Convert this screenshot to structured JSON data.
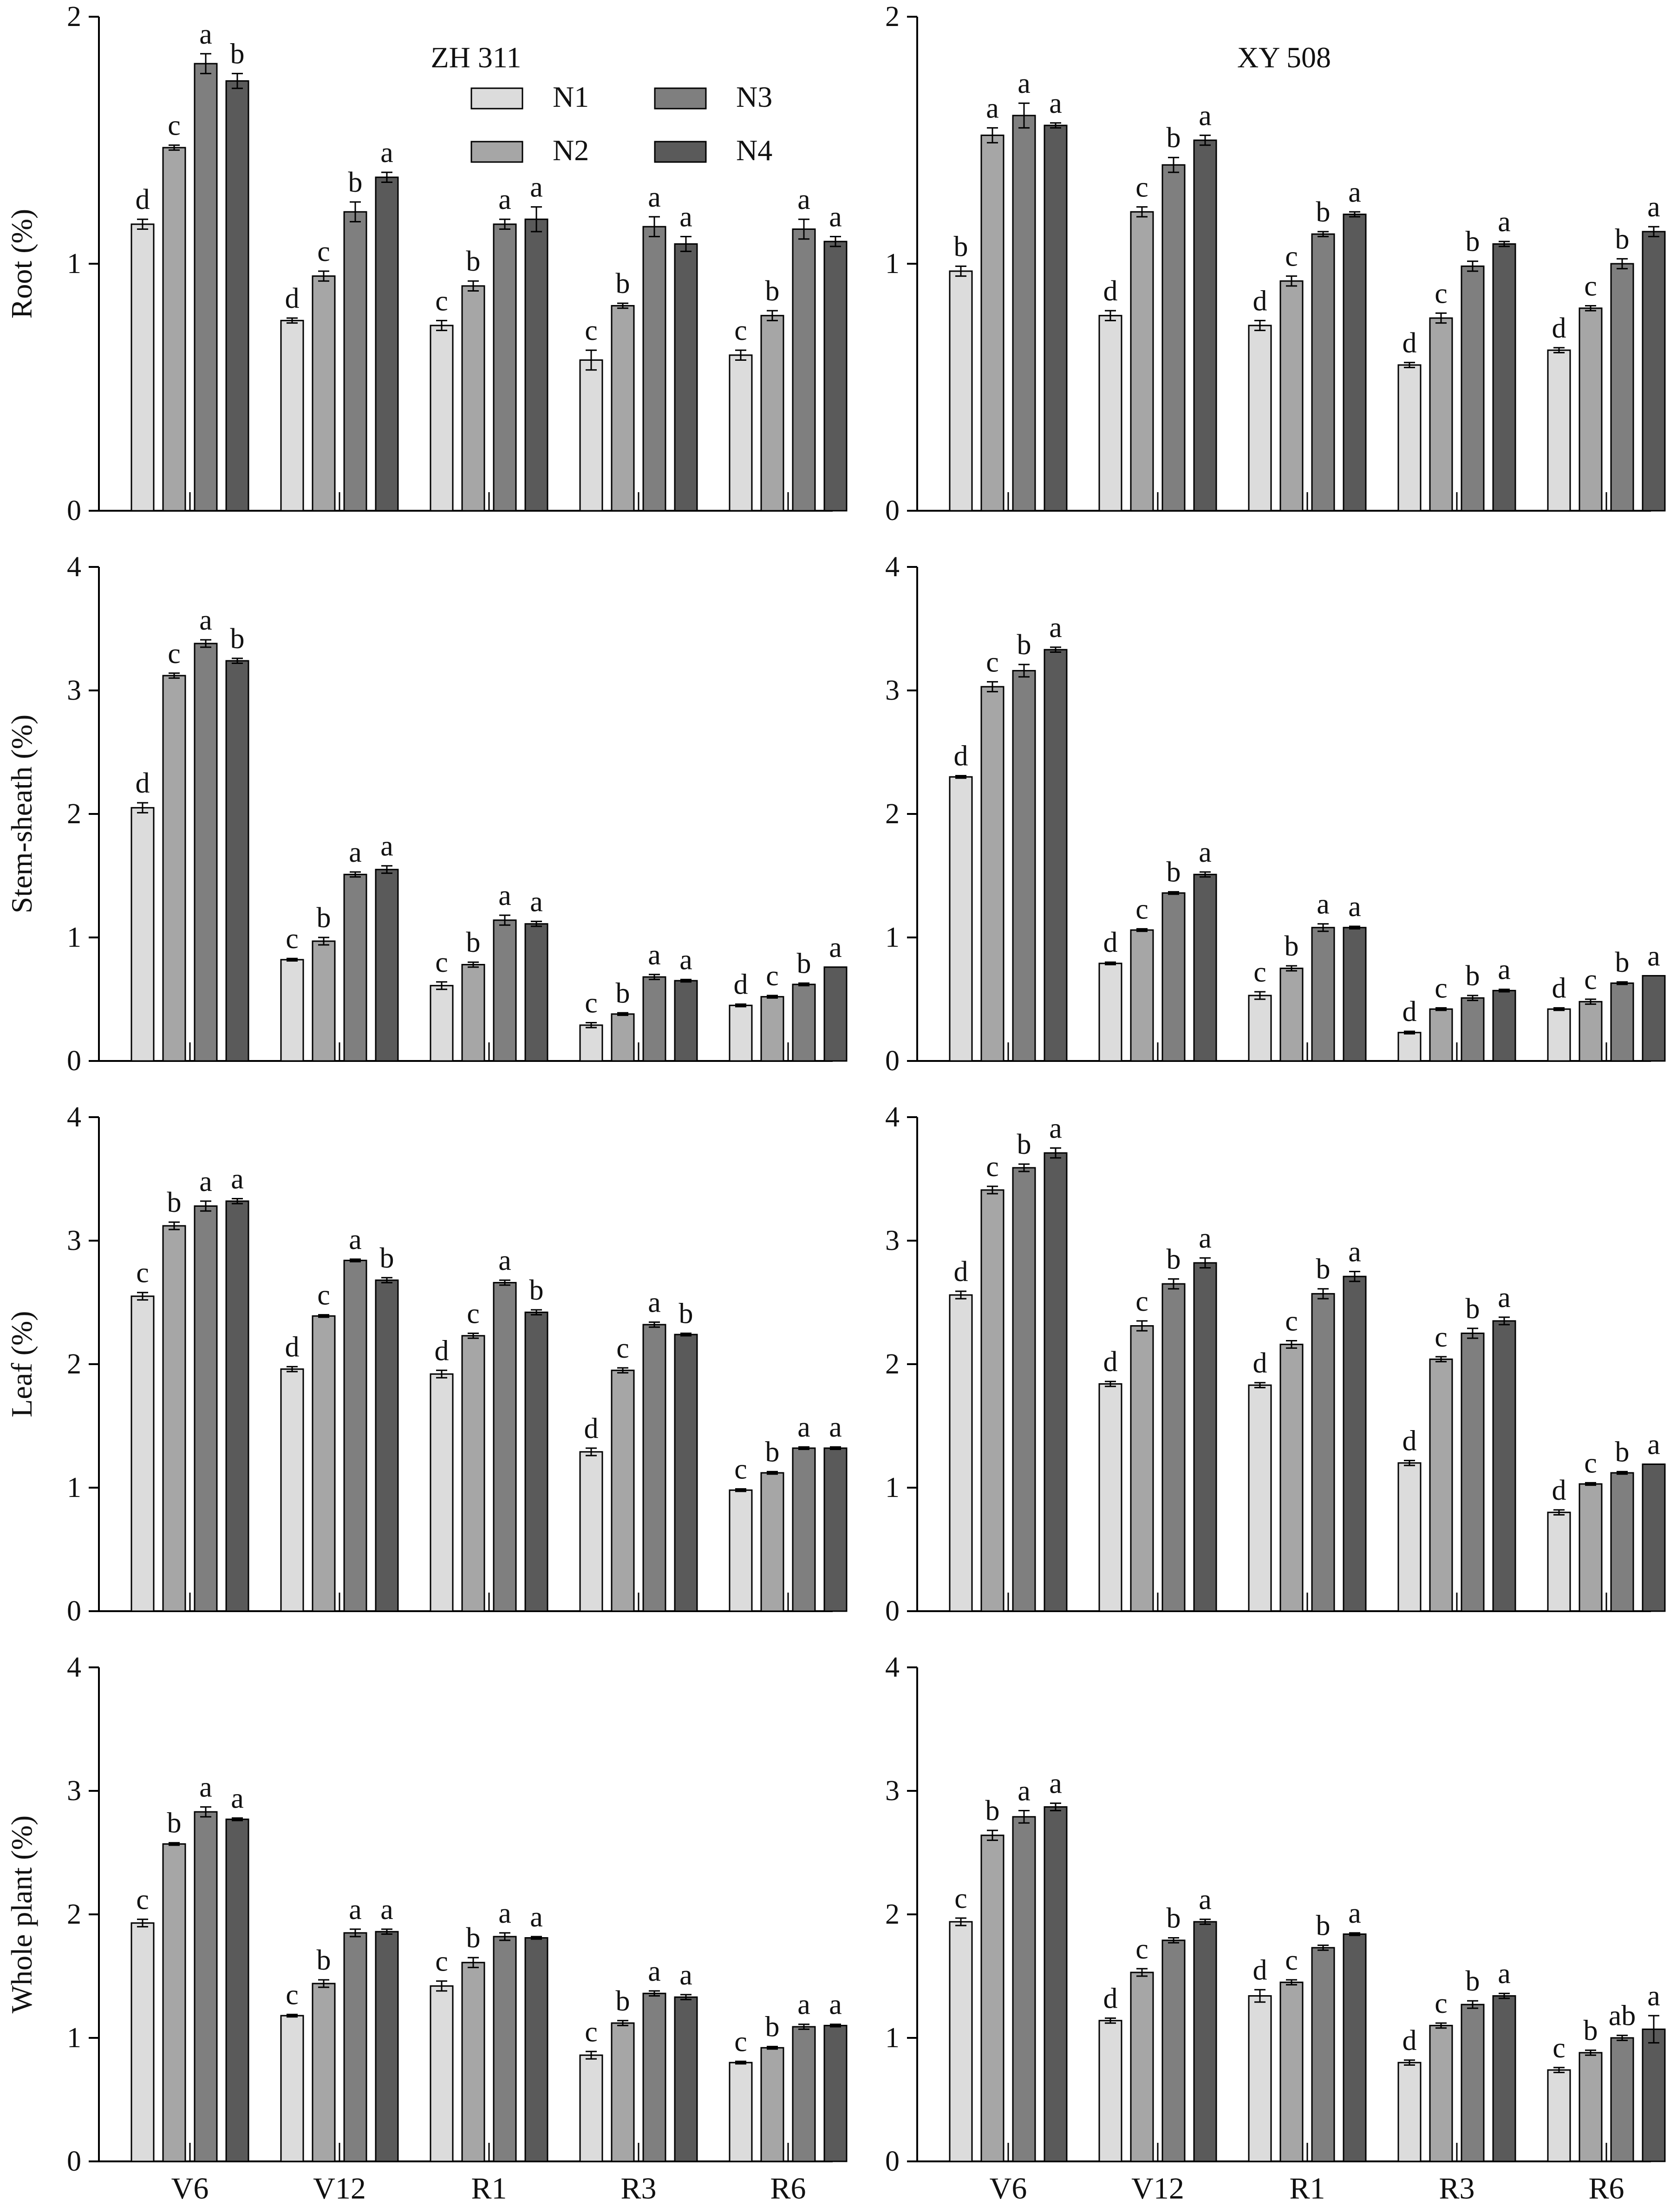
{
  "figure": {
    "varieties": [
      "ZH 311",
      "XY 508"
    ],
    "stages": [
      "V6",
      "V12",
      "R1",
      "R3",
      "R6"
    ],
    "legend": [
      {
        "name": "N1",
        "color": "#dcdcdc"
      },
      {
        "name": "N2",
        "color": "#a6a6a6"
      },
      {
        "name": "N3",
        "color": "#7f7f7f"
      },
      {
        "name": "N4",
        "color": "#5a5a5a"
      }
    ]
  },
  "chart_data": [
    {
      "type": "bar",
      "organ": "Root",
      "variety": "ZH 311",
      "title": "ZH 311",
      "ylabel": "Root (%)",
      "ylim": [
        0,
        2
      ],
      "yticks": [
        0,
        1,
        2
      ],
      "categories": [
        "V6",
        "V12",
        "R1",
        "R3",
        "R6"
      ],
      "show_legend": true,
      "show_xlabels": false,
      "series": [
        {
          "name": "N1",
          "values": [
            1.16,
            0.77,
            0.75,
            0.61,
            0.63
          ],
          "errors": [
            0.02,
            0.01,
            0.02,
            0.04,
            0.02
          ],
          "letters": [
            "d",
            "d",
            "c",
            "c",
            "c"
          ]
        },
        {
          "name": "N2",
          "values": [
            1.47,
            0.95,
            0.91,
            0.83,
            0.79
          ],
          "errors": [
            0.01,
            0.02,
            0.02,
            0.01,
            0.02
          ],
          "letters": [
            "c",
            "c",
            "b",
            "b",
            "b"
          ]
        },
        {
          "name": "N3",
          "values": [
            1.81,
            1.21,
            1.16,
            1.15,
            1.14
          ],
          "errors": [
            0.04,
            0.04,
            0.02,
            0.04,
            0.04
          ],
          "letters": [
            "a",
            "b",
            "a",
            "a",
            "a"
          ]
        },
        {
          "name": "N4",
          "values": [
            1.74,
            1.35,
            1.18,
            1.08,
            1.09
          ],
          "errors": [
            0.03,
            0.02,
            0.05,
            0.03,
            0.02
          ],
          "letters": [
            "b",
            "a",
            "a",
            "a",
            "a"
          ]
        }
      ]
    },
    {
      "type": "bar",
      "organ": "Root",
      "variety": "XY 508",
      "title": "XY 508",
      "ylabel": "",
      "ylim": [
        0,
        2
      ],
      "yticks": [
        0,
        1,
        2
      ],
      "categories": [
        "V6",
        "V12",
        "R1",
        "R3",
        "R6"
      ],
      "show_legend": false,
      "show_xlabels": false,
      "series": [
        {
          "name": "N1",
          "values": [
            0.97,
            0.79,
            0.75,
            0.59,
            0.65
          ],
          "errors": [
            0.02,
            0.02,
            0.02,
            0.01,
            0.01
          ],
          "letters": [
            "b",
            "d",
            "d",
            "d",
            "d"
          ]
        },
        {
          "name": "N2",
          "values": [
            1.52,
            1.21,
            0.93,
            0.78,
            0.82
          ],
          "errors": [
            0.03,
            0.02,
            0.02,
            0.02,
            0.01
          ],
          "letters": [
            "a",
            "c",
            "c",
            "c",
            "c"
          ]
        },
        {
          "name": "N3",
          "values": [
            1.6,
            1.4,
            1.12,
            0.99,
            1.0
          ],
          "errors": [
            0.05,
            0.03,
            0.01,
            0.02,
            0.02
          ],
          "letters": [
            "a",
            "b",
            "b",
            "b",
            "b"
          ]
        },
        {
          "name": "N4",
          "values": [
            1.56,
            1.5,
            1.2,
            1.08,
            1.13
          ],
          "errors": [
            0.01,
            0.02,
            0.01,
            0.01,
            0.02
          ],
          "letters": [
            "a",
            "a",
            "a",
            "a",
            "a"
          ]
        }
      ]
    },
    {
      "type": "bar",
      "organ": "Stem-sheath",
      "variety": "ZH 311",
      "title": "",
      "ylabel": "Stem-sheath (%)",
      "ylim": [
        0,
        4
      ],
      "yticks": [
        0,
        1,
        2,
        3,
        4
      ],
      "categories": [
        "V6",
        "V12",
        "R1",
        "R3",
        "R6"
      ],
      "show_legend": false,
      "show_xlabels": false,
      "series": [
        {
          "name": "N1",
          "values": [
            2.05,
            0.82,
            0.61,
            0.29,
            0.45
          ],
          "errors": [
            0.04,
            0.01,
            0.03,
            0.02,
            0.01
          ],
          "letters": [
            "d",
            "c",
            "c",
            "c",
            "d"
          ]
        },
        {
          "name": "N2",
          "values": [
            3.12,
            0.97,
            0.78,
            0.38,
            0.52
          ],
          "errors": [
            0.02,
            0.03,
            0.02,
            0.01,
            0.01
          ],
          "letters": [
            "c",
            "b",
            "b",
            "b",
            "c"
          ]
        },
        {
          "name": "N3",
          "values": [
            3.38,
            1.51,
            1.14,
            0.68,
            0.62
          ],
          "errors": [
            0.03,
            0.02,
            0.04,
            0.02,
            0.01
          ],
          "letters": [
            "a",
            "a",
            "a",
            "a",
            "b"
          ]
        },
        {
          "name": "N4",
          "values": [
            3.24,
            1.55,
            1.11,
            0.65,
            0.76
          ],
          "errors": [
            0.02,
            0.03,
            0.02,
            0.01,
            0.0
          ],
          "letters": [
            "b",
            "a",
            "a",
            "a",
            "a"
          ]
        }
      ]
    },
    {
      "type": "bar",
      "organ": "Stem-sheath",
      "variety": "XY 508",
      "title": "",
      "ylabel": "",
      "ylim": [
        0,
        4
      ],
      "yticks": [
        0,
        1,
        2,
        3,
        4
      ],
      "categories": [
        "V6",
        "V12",
        "R1",
        "R3",
        "R6"
      ],
      "show_legend": false,
      "show_xlabels": false,
      "series": [
        {
          "name": "N1",
          "values": [
            2.3,
            0.79,
            0.53,
            0.23,
            0.42
          ],
          "errors": [
            0.01,
            0.01,
            0.03,
            0.01,
            0.01
          ],
          "letters": [
            "d",
            "d",
            "c",
            "d",
            "d"
          ]
        },
        {
          "name": "N2",
          "values": [
            3.03,
            1.06,
            0.75,
            0.42,
            0.48
          ],
          "errors": [
            0.04,
            0.01,
            0.02,
            0.01,
            0.02
          ],
          "letters": [
            "c",
            "c",
            "b",
            "c",
            "c"
          ]
        },
        {
          "name": "N3",
          "values": [
            3.16,
            1.36,
            1.08,
            0.51,
            0.63
          ],
          "errors": [
            0.05,
            0.01,
            0.03,
            0.02,
            0.01
          ],
          "letters": [
            "b",
            "b",
            "a",
            "b",
            "b"
          ]
        },
        {
          "name": "N4",
          "values": [
            3.33,
            1.51,
            1.08,
            0.57,
            0.69
          ],
          "errors": [
            0.02,
            0.02,
            0.01,
            0.01,
            0.0
          ],
          "letters": [
            "a",
            "a",
            "a",
            "a",
            "a"
          ]
        }
      ]
    },
    {
      "type": "bar",
      "organ": "Leaf",
      "variety": "ZH 311",
      "title": "",
      "ylabel": "Leaf (%)",
      "ylim": [
        0,
        4
      ],
      "yticks": [
        0,
        1,
        2,
        3,
        4
      ],
      "categories": [
        "V6",
        "V12",
        "R1",
        "R3",
        "R6"
      ],
      "show_legend": false,
      "show_xlabels": false,
      "series": [
        {
          "name": "N1",
          "values": [
            2.55,
            1.96,
            1.92,
            1.29,
            0.98
          ],
          "errors": [
            0.03,
            0.02,
            0.03,
            0.03,
            0.01
          ],
          "letters": [
            "c",
            "d",
            "d",
            "d",
            "c"
          ]
        },
        {
          "name": "N2",
          "values": [
            3.12,
            2.39,
            2.23,
            1.95,
            1.12
          ],
          "errors": [
            0.03,
            0.01,
            0.02,
            0.02,
            0.01
          ],
          "letters": [
            "b",
            "c",
            "c",
            "c",
            "b"
          ]
        },
        {
          "name": "N3",
          "values": [
            3.28,
            2.84,
            2.66,
            2.32,
            1.32
          ],
          "errors": [
            0.04,
            0.01,
            0.02,
            0.02,
            0.01
          ],
          "letters": [
            "a",
            "a",
            "a",
            "a",
            "a"
          ]
        },
        {
          "name": "N4",
          "values": [
            3.32,
            2.68,
            2.42,
            2.24,
            1.32
          ],
          "errors": [
            0.02,
            0.02,
            0.02,
            0.01,
            0.01
          ],
          "letters": [
            "a",
            "b",
            "b",
            "b",
            "a"
          ]
        }
      ]
    },
    {
      "type": "bar",
      "organ": "Leaf",
      "variety": "XY 508",
      "title": "",
      "ylabel": "",
      "ylim": [
        0,
        4
      ],
      "yticks": [
        0,
        1,
        2,
        3,
        4
      ],
      "categories": [
        "V6",
        "V12",
        "R1",
        "R3",
        "R6"
      ],
      "show_legend": false,
      "show_xlabels": false,
      "series": [
        {
          "name": "N1",
          "values": [
            2.56,
            1.84,
            1.83,
            1.2,
            0.8
          ],
          "errors": [
            0.03,
            0.02,
            0.02,
            0.02,
            0.02
          ],
          "letters": [
            "d",
            "d",
            "d",
            "d",
            "d"
          ]
        },
        {
          "name": "N2",
          "values": [
            3.41,
            2.31,
            2.16,
            2.04,
            1.03
          ],
          "errors": [
            0.03,
            0.04,
            0.03,
            0.02,
            0.01
          ],
          "letters": [
            "c",
            "c",
            "c",
            "c",
            "c"
          ]
        },
        {
          "name": "N3",
          "values": [
            3.59,
            2.65,
            2.57,
            2.25,
            1.12
          ],
          "errors": [
            0.03,
            0.04,
            0.04,
            0.04,
            0.01
          ],
          "letters": [
            "b",
            "b",
            "b",
            "b",
            "b"
          ]
        },
        {
          "name": "N4",
          "values": [
            3.71,
            2.82,
            2.71,
            2.35,
            1.19
          ],
          "errors": [
            0.04,
            0.04,
            0.04,
            0.03,
            0.0
          ],
          "letters": [
            "a",
            "a",
            "a",
            "a",
            "a"
          ]
        }
      ]
    },
    {
      "type": "bar",
      "organ": "Whole plant",
      "variety": "ZH 311",
      "title": "",
      "ylabel": "Whole plant (%)",
      "ylim": [
        0,
        4
      ],
      "yticks": [
        0,
        1,
        2,
        3,
        4
      ],
      "categories": [
        "V6",
        "V12",
        "R1",
        "R3",
        "R6"
      ],
      "show_legend": false,
      "show_xlabels": true,
      "series": [
        {
          "name": "N1",
          "values": [
            1.93,
            1.18,
            1.42,
            0.86,
            0.8
          ],
          "errors": [
            0.03,
            0.01,
            0.04,
            0.03,
            0.01
          ],
          "letters": [
            "c",
            "c",
            "c",
            "c",
            "c"
          ]
        },
        {
          "name": "N2",
          "values": [
            2.57,
            1.44,
            1.61,
            1.12,
            0.92
          ],
          "errors": [
            0.01,
            0.03,
            0.04,
            0.02,
            0.01
          ],
          "letters": [
            "b",
            "b",
            "b",
            "b",
            "b"
          ]
        },
        {
          "name": "N3",
          "values": [
            2.83,
            1.85,
            1.82,
            1.36,
            1.09
          ],
          "errors": [
            0.04,
            0.03,
            0.03,
            0.02,
            0.02
          ],
          "letters": [
            "a",
            "a",
            "a",
            "a",
            "a"
          ]
        },
        {
          "name": "N4",
          "values": [
            2.77,
            1.86,
            1.81,
            1.33,
            1.1
          ],
          "errors": [
            0.01,
            0.02,
            0.01,
            0.02,
            0.01
          ],
          "letters": [
            "a",
            "a",
            "a",
            "a",
            "a"
          ]
        }
      ]
    },
    {
      "type": "bar",
      "organ": "Whole plant",
      "variety": "XY 508",
      "title": "",
      "ylabel": "",
      "ylim": [
        0,
        4
      ],
      "yticks": [
        0,
        1,
        2,
        3,
        4
      ],
      "categories": [
        "V6",
        "V12",
        "R1",
        "R3",
        "R6"
      ],
      "show_legend": false,
      "show_xlabels": true,
      "series": [
        {
          "name": "N1",
          "values": [
            1.94,
            1.14,
            1.34,
            0.8,
            0.74
          ],
          "errors": [
            0.03,
            0.02,
            0.05,
            0.02,
            0.02
          ],
          "letters": [
            "c",
            "d",
            "d",
            "d",
            "c"
          ]
        },
        {
          "name": "N2",
          "values": [
            2.64,
            1.53,
            1.45,
            1.1,
            0.88
          ],
          "errors": [
            0.04,
            0.03,
            0.02,
            0.02,
            0.02
          ],
          "letters": [
            "b",
            "c",
            "c",
            "c",
            "b"
          ]
        },
        {
          "name": "N3",
          "values": [
            2.79,
            1.79,
            1.73,
            1.27,
            1.0
          ],
          "errors": [
            0.05,
            0.02,
            0.02,
            0.03,
            0.02
          ],
          "letters": [
            "a",
            "b",
            "b",
            "b",
            "ab"
          ]
        },
        {
          "name": "N4",
          "values": [
            2.87,
            1.94,
            1.84,
            1.34,
            1.07
          ],
          "errors": [
            0.03,
            0.02,
            0.01,
            0.02,
            0.11
          ],
          "letters": [
            "a",
            "a",
            "a",
            "a",
            "a"
          ]
        }
      ]
    }
  ]
}
